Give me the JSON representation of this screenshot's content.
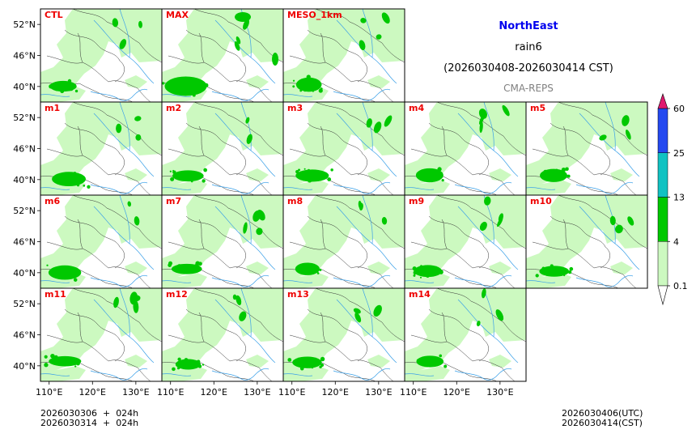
{
  "chart_data": {
    "type": "heatmap",
    "title": "NorthEast",
    "variable": "rain6",
    "period": "(2026030408-2026030414 CST)",
    "source": "CMA-REPS",
    "panels": [
      "CTL",
      "MAX",
      "MESO_1km",
      "m1",
      "m2",
      "m3",
      "m4",
      "m5",
      "m6",
      "m7",
      "m8",
      "m9",
      "m10",
      "m11",
      "m12",
      "m13",
      "m14"
    ],
    "lon_ticks": [
      "110°E",
      "120°E",
      "130°E"
    ],
    "lat_ticks": [
      "52°N",
      "46°N",
      "40°N"
    ],
    "lon_range": [
      108,
      136
    ],
    "lat_range": [
      37,
      55
    ],
    "colorbar": {
      "levels": [
        0.1,
        4,
        13,
        25,
        60
      ],
      "level_labels": [
        "0.1",
        "4",
        "13",
        "25",
        "60"
      ],
      "colors": [
        "#ccf9c0",
        "#00c800",
        "#11c2c2",
        "#2449f0",
        "#e0196e"
      ],
      "extend": "both"
    },
    "footer_left": [
      "2026030306  +  024h",
      "2026030314  +  024h"
    ],
    "footer_right": [
      "2026030406(UTC)",
      "2026030414(CST)"
    ]
  },
  "colors": {
    "title": "#0000ee",
    "panel_label": "#ee0000",
    "source": "#808080",
    "rain_light": "#ccf9c0",
    "rain_mid": "#00c800",
    "river": "#3aa0e8",
    "border": "#303030"
  }
}
